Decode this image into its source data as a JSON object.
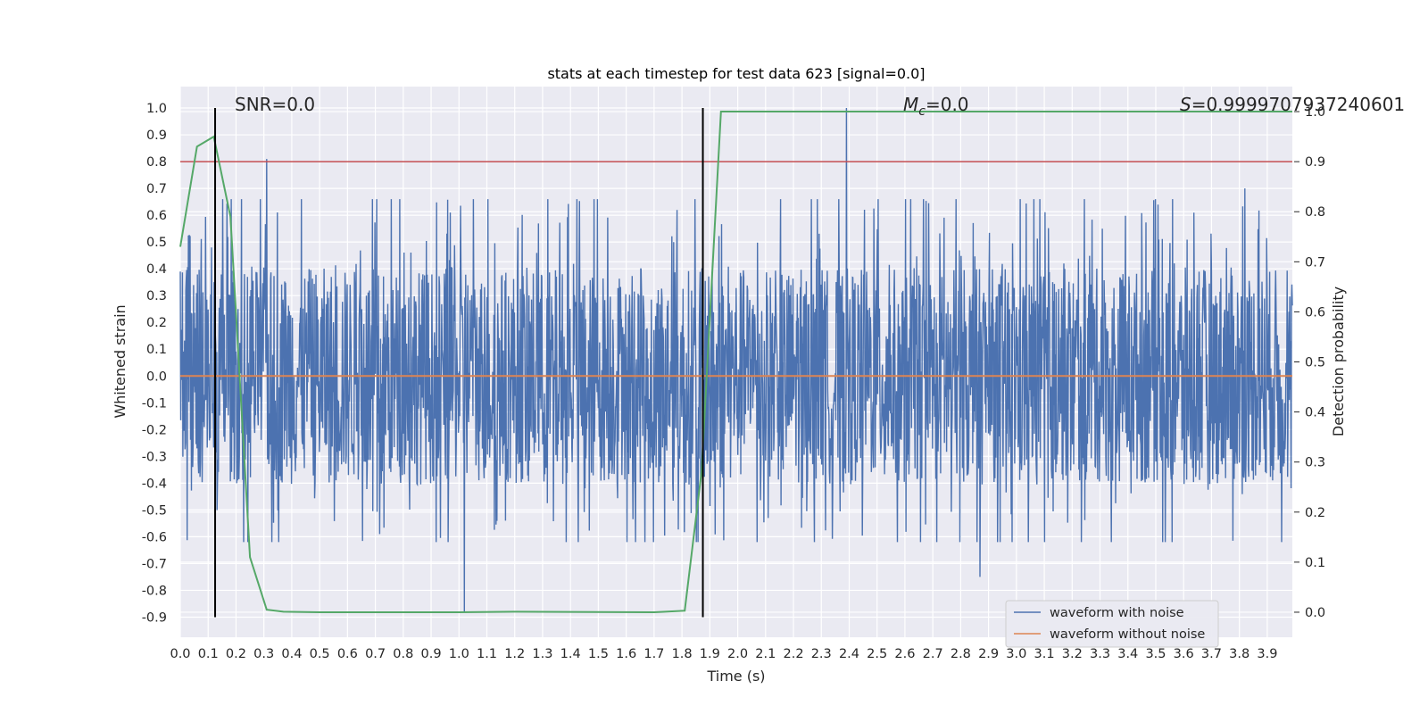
{
  "chart_data": {
    "type": "line",
    "title": "stats at each timestep for test data 623 [signal=0.0]",
    "xlabel": "Time (s)",
    "ylabel": "Whitened strain",
    "y2label": "Detection probability",
    "xlim": [
      0.0,
      3.99
    ],
    "ylim": [
      -0.975,
      1.08
    ],
    "y2lim": [
      -0.05,
      1.05
    ],
    "x_ticks": [
      "0.0",
      "0.1",
      "0.2",
      "0.3",
      "0.4",
      "0.5",
      "0.6",
      "0.7",
      "0.8",
      "0.9",
      "1.0",
      "1.1",
      "1.2",
      "1.3",
      "1.4",
      "1.5",
      "1.6",
      "1.7",
      "1.8",
      "1.9",
      "2.0",
      "2.1",
      "2.2",
      "2.3",
      "2.4",
      "2.5",
      "2.6",
      "2.7",
      "2.8",
      "2.9",
      "3.0",
      "3.1",
      "3.2",
      "3.3",
      "3.4",
      "3.5",
      "3.6",
      "3.7",
      "3.8",
      "3.9"
    ],
    "y_ticks": [
      "1.0",
      "0.9",
      "0.8",
      "0.7",
      "0.6",
      "0.5",
      "0.4",
      "0.3",
      "0.2",
      "0.1",
      "0.0",
      "-0.1",
      "-0.2",
      "-0.3",
      "-0.4",
      "-0.5",
      "-0.6",
      "-0.7",
      "-0.8",
      "-0.9"
    ],
    "y2_ticks": [
      "1.0",
      "0.9",
      "0.8",
      "0.7",
      "0.6",
      "0.5",
      "0.4",
      "0.3",
      "0.2",
      "0.1",
      "0.0"
    ],
    "grid": true,
    "legend_position": "lower-right",
    "series": [
      {
        "name": "waveform with noise",
        "color": "#4c72b0",
        "kind": "noise",
        "envelope_upper": 0.45,
        "envelope_lower": -0.45,
        "peaks": [
          [
            0.31,
            0.81
          ],
          [
            2.39,
            1.0
          ],
          [
            3.82,
            0.7
          ],
          [
            1.02,
            -0.88
          ],
          [
            2.87,
            -0.75
          ]
        ]
      },
      {
        "name": "waveform without noise",
        "color": "#dd8452",
        "x": [
          0.0,
          3.99
        ],
        "y": [
          0.0,
          0.0
        ]
      }
    ],
    "detection_probability": {
      "color": "#55a868",
      "x": [
        0.0,
        0.06,
        0.12,
        0.18,
        0.25,
        0.31,
        0.37,
        0.5,
        1.0,
        1.2,
        1.7,
        1.81,
        1.87,
        1.94,
        3.99
      ],
      "y": [
        0.73,
        0.93,
        0.95,
        0.79,
        0.11,
        0.005,
        0.001,
        0.0,
        0.0,
        0.001,
        0.0,
        0.003,
        0.28,
        1.0,
        1.0
      ]
    },
    "threshold": {
      "color": "#c44e52",
      "value": 0.9
    },
    "markers": {
      "color": "#000000",
      "x": [
        0.125,
        1.875
      ],
      "y_top": 1.0,
      "y_bottom": -0.9
    },
    "annotations": {
      "snr": "SNR=0.0",
      "mc_symbol": "M",
      "mc_sub": "c",
      "mc_value": "=0.0",
      "s_symbol": "S",
      "s_value": "=0.9999707937240601"
    },
    "colors": {
      "background": "#eaeaf2",
      "grid": "#ffffff"
    }
  }
}
